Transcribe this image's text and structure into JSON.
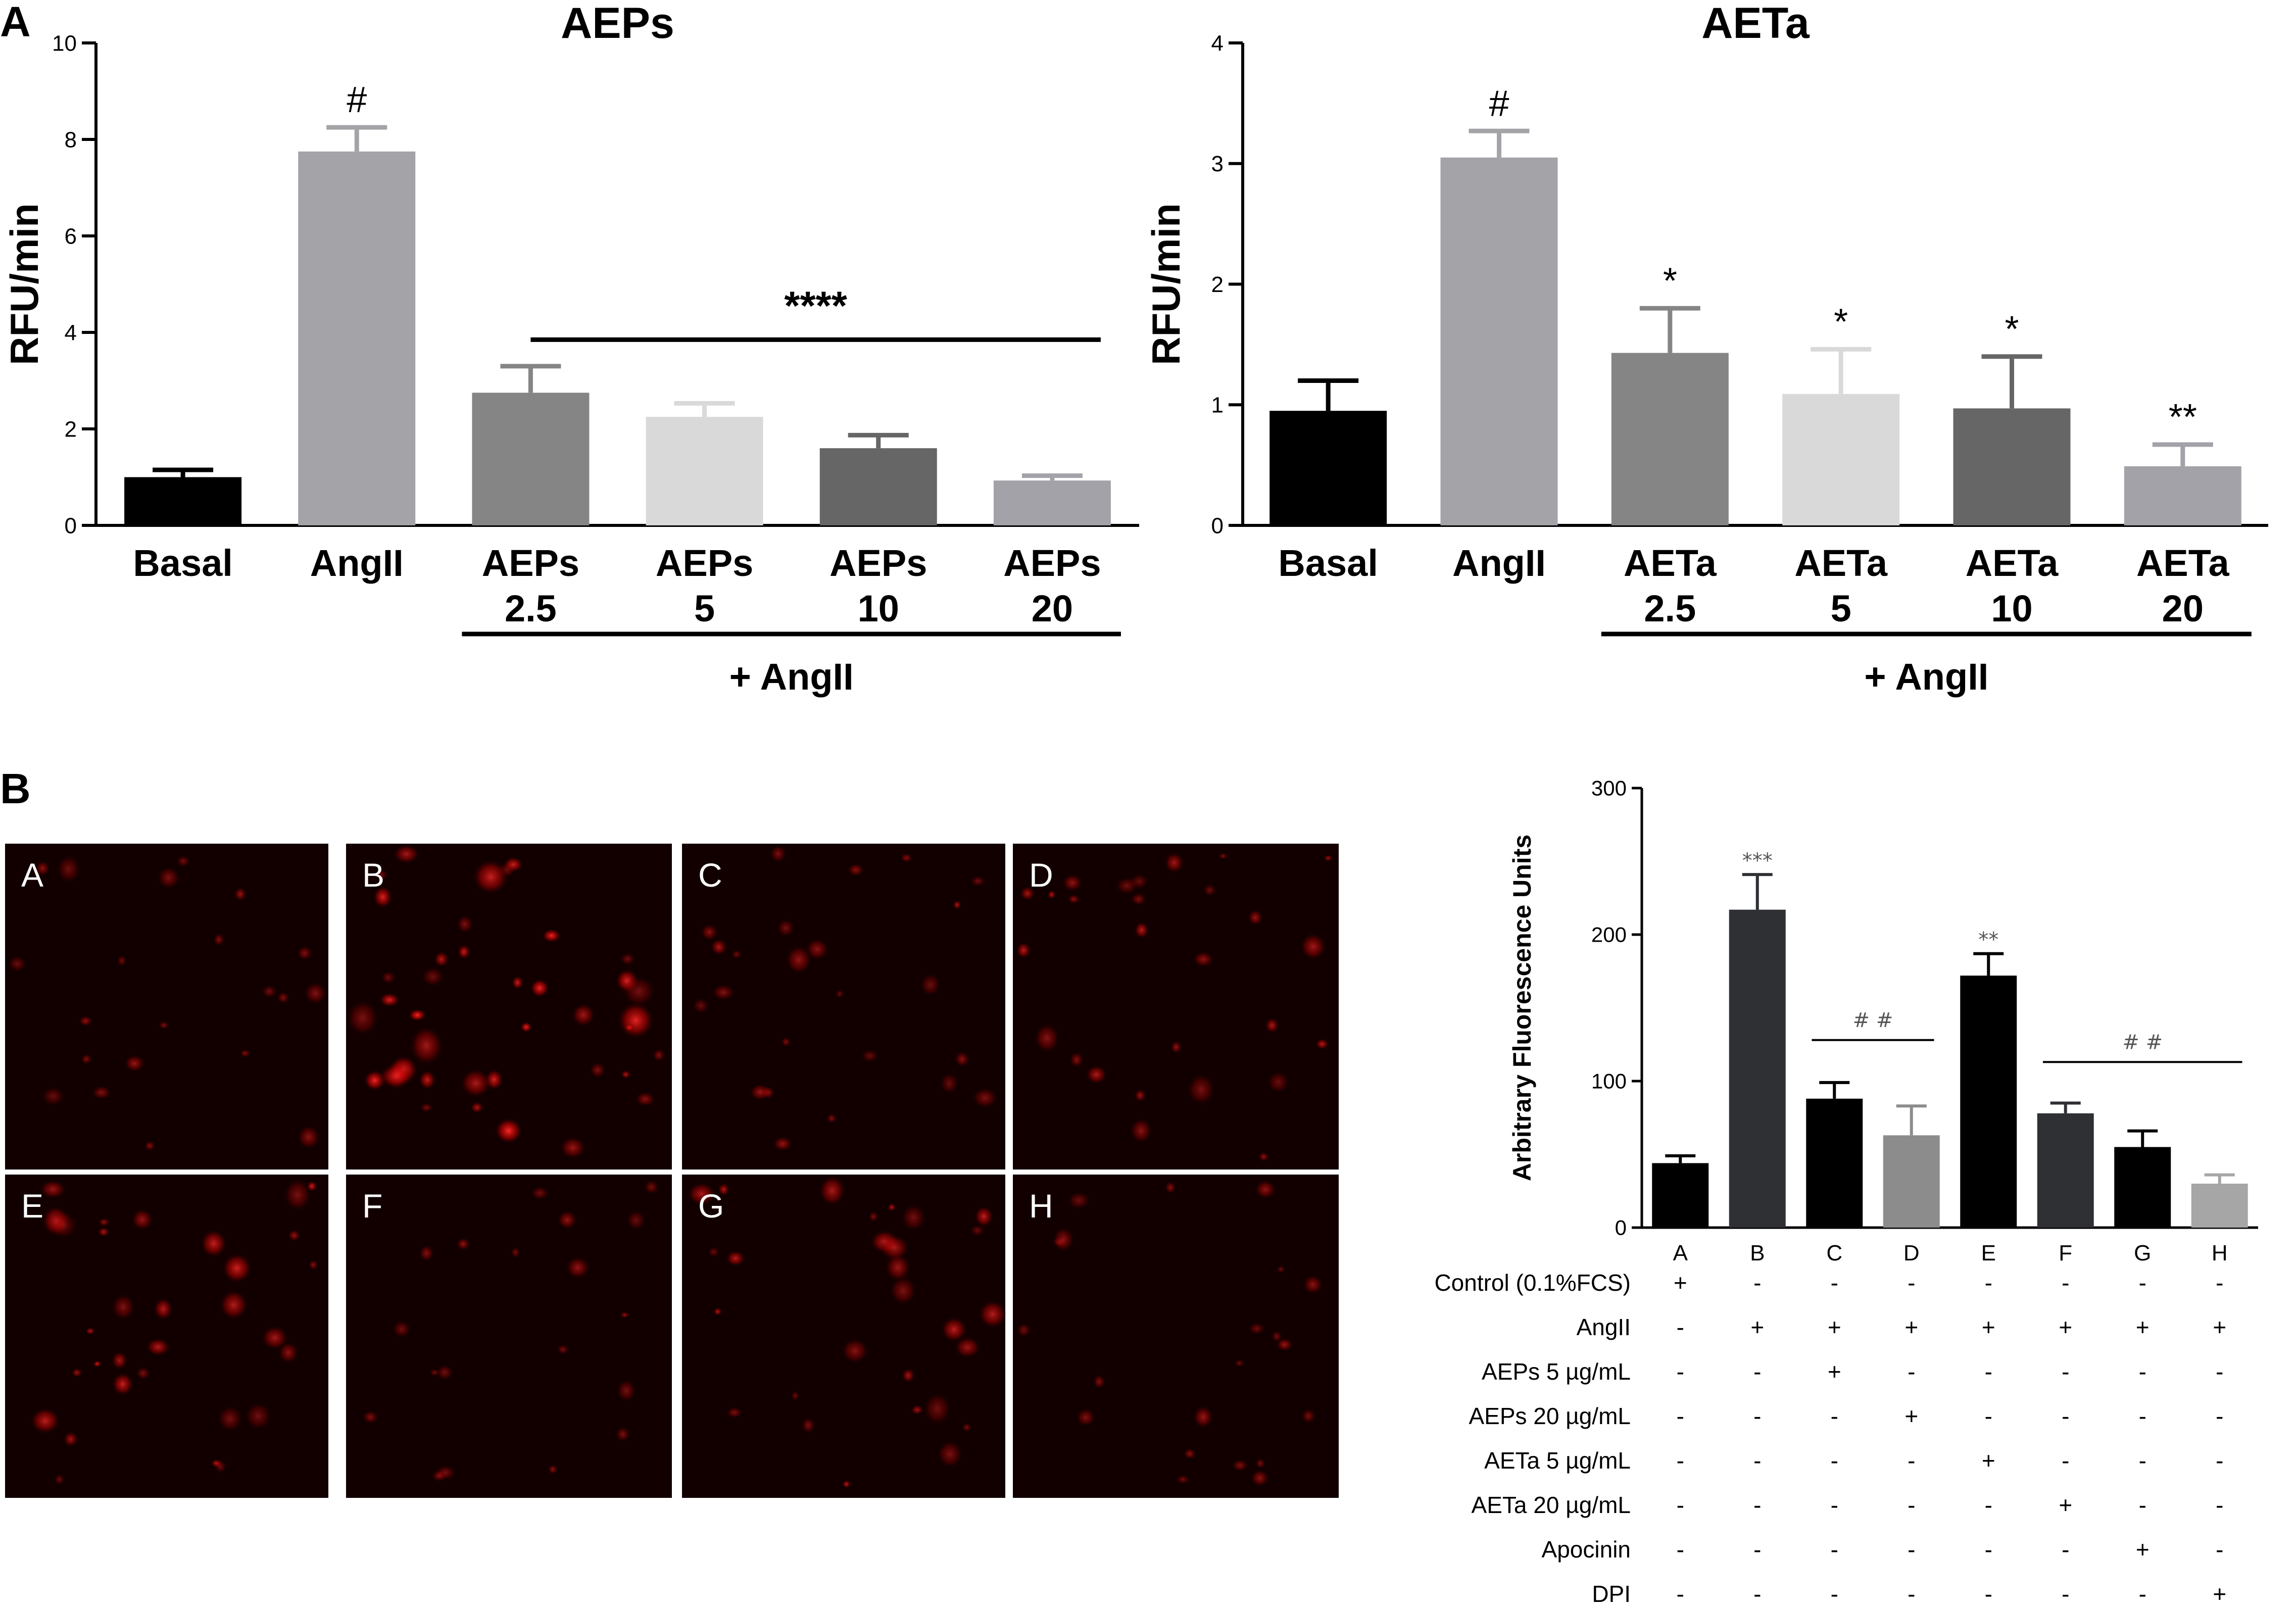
{
  "panel_labels": [
    "A",
    "B"
  ],
  "chart_data": [
    {
      "type": "bar",
      "title": "AEPs",
      "ylabel": "RFU/min",
      "xlabel": "",
      "ylim": [
        0,
        10
      ],
      "yticks": [
        0,
        2,
        4,
        6,
        8,
        10
      ],
      "categories": [
        "Basal",
        "AngII",
        "AEPs\n2.5",
        "AEPs\n5",
        "AEPs\n10",
        "AEPs\n20"
      ],
      "values": [
        1.0,
        7.75,
        2.75,
        2.25,
        1.6,
        0.93
      ],
      "errors": [
        0.15,
        0.5,
        0.55,
        0.28,
        0.27,
        0.1
      ],
      "colors": [
        "#000000",
        "#a4a4a8",
        "#858585",
        "#d9d9d9",
        "#666666",
        "#a2a2a8"
      ],
      "annotations": [
        "",
        "#",
        "",
        "",
        "",
        ""
      ],
      "bracket_label": "****",
      "group_label": "+ AngII",
      "grid": false
    },
    {
      "type": "bar",
      "title": "AETa",
      "ylabel": "RFU/min",
      "xlabel": "",
      "ylim": [
        0,
        4
      ],
      "yticks": [
        0,
        1,
        2,
        3,
        4
      ],
      "categories": [
        "Basal",
        "AngII",
        "AETa\n2.5",
        "AETa\n5",
        "AETa\n10",
        "AETa\n20"
      ],
      "values": [
        0.95,
        3.05,
        1.43,
        1.09,
        0.97,
        0.49
      ],
      "errors": [
        0.25,
        0.22,
        0.37,
        0.37,
        0.43,
        0.18
      ],
      "colors": [
        "#000000",
        "#a4a4a8",
        "#858585",
        "#d9d9d9",
        "#666666",
        "#a2a2a8"
      ],
      "annotations": [
        "",
        "#",
        "*",
        "*",
        "*",
        "**"
      ],
      "group_label": "+ AngII",
      "grid": false
    },
    {
      "type": "bar",
      "title": "",
      "ylabel": "Arbitrary Fluorescence Units",
      "xlabel": "",
      "ylim": [
        0,
        300
      ],
      "yticks": [
        0,
        100,
        200,
        300
      ],
      "categories": [
        "A",
        "B",
        "C",
        "D",
        "E",
        "F",
        "G",
        "H"
      ],
      "values": [
        44,
        217,
        88,
        63,
        172,
        78,
        55,
        30
      ],
      "errors": [
        5,
        24,
        11,
        20,
        15,
        7,
        11,
        6
      ],
      "colors": [
        "#000000",
        "#2e3034",
        "#000000",
        "#8c8c8c",
        "#000000",
        "#2e3034",
        "#000000",
        "#a6a6a6"
      ],
      "annotations": [
        "",
        "***",
        "",
        "",
        "**",
        "",
        "",
        ""
      ],
      "brackets": [
        {
          "label": "# #",
          "from": 2,
          "to": 3
        },
        {
          "label": "# #",
          "from": 5,
          "to": 7
        }
      ],
      "grid": false
    }
  ],
  "treatment_table": {
    "rows": [
      {
        "label": "Control (0.1%FCS)",
        "marks": [
          "+",
          "-",
          "-",
          "-",
          "-",
          "-",
          "-",
          "-"
        ]
      },
      {
        "label": "AngII",
        "marks": [
          "-",
          "+",
          "+",
          "+",
          "+",
          "+",
          "+",
          "+"
        ]
      },
      {
        "label": "AEPs 5 µg/mL",
        "marks": [
          "-",
          "-",
          "+",
          "-",
          "-",
          "-",
          "-",
          "-"
        ]
      },
      {
        "label": "AEPs 20 µg/mL",
        "marks": [
          "-",
          "-",
          "-",
          "+",
          "-",
          "-",
          "-",
          "-"
        ]
      },
      {
        "label": "AETa 5 µg/mL",
        "marks": [
          "-",
          "-",
          "-",
          "-",
          "+",
          "-",
          "-",
          "-"
        ]
      },
      {
        "label": "AETa 20 µg/mL",
        "marks": [
          "-",
          "-",
          "-",
          "-",
          "-",
          "+",
          "-",
          "-"
        ]
      },
      {
        "label": "Apocinin",
        "marks": [
          "-",
          "-",
          "-",
          "-",
          "-",
          "-",
          "+",
          "-"
        ]
      },
      {
        "label": "DPI",
        "marks": [
          "-",
          "-",
          "-",
          "-",
          "-",
          "-",
          "-",
          "+"
        ]
      }
    ]
  },
  "micrographs": {
    "panels": [
      {
        "letter": "A",
        "brightness": 0.35
      },
      {
        "letter": "B",
        "brightness": 1.0
      },
      {
        "letter": "C",
        "brightness": 0.45
      },
      {
        "letter": "D",
        "brightness": 0.55
      },
      {
        "letter": "E",
        "brightness": 0.7
      },
      {
        "letter": "F",
        "brightness": 0.3
      },
      {
        "letter": "G",
        "brightness": 0.6
      },
      {
        "letter": "H",
        "brightness": 0.35
      }
    ]
  }
}
